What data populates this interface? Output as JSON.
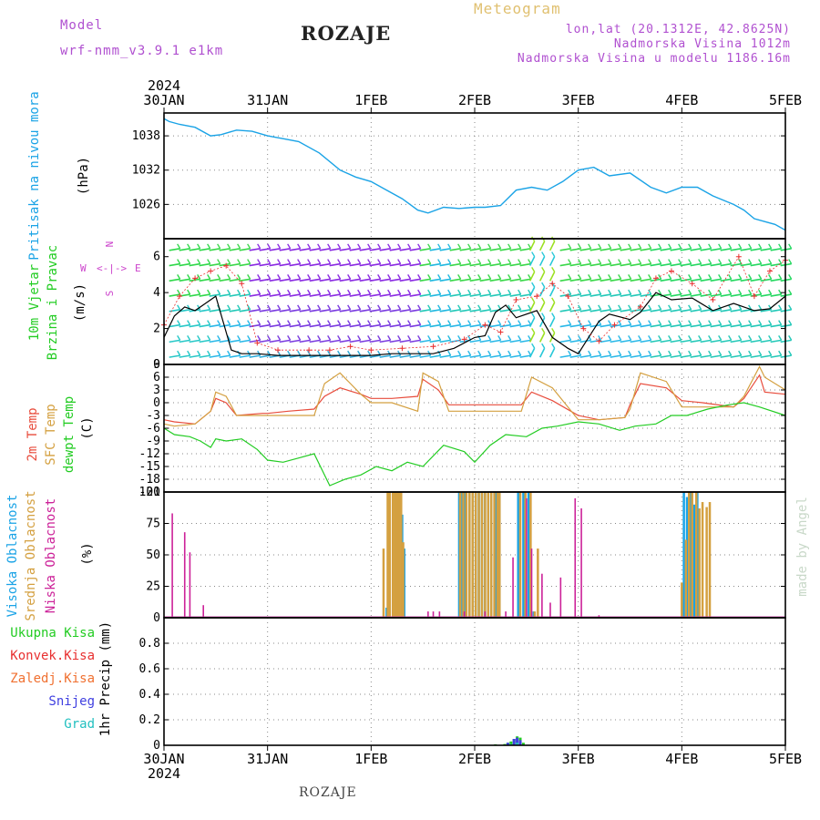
{
  "header": {
    "model_label": "Model",
    "model_name": "wrf-nmm_v3.9.1  e1km",
    "station": "ROZAJE",
    "meteogram_label": "Meteogram",
    "lonlat": "lon,lat (20.1312E, 42.8625N)",
    "elevation": "Nadmorska Visina 1012m",
    "model_elevation": "Nadmorska Visina u modelu 1186.16m",
    "watermark": "made by Angel"
  },
  "footer": {
    "station": "ROZAJE"
  },
  "time_axis": {
    "year": "2024",
    "ticks": [
      "30JAN",
      "31JAN",
      "1FEB",
      "2FEB",
      "3FEB",
      "4FEB",
      "5FEB"
    ]
  },
  "colors": {
    "pressure": "#1aa3e6",
    "wind_label": "#22cc22",
    "wind_dir": "#cc44cc",
    "speed_line": "#000000",
    "gust": "#e83030",
    "temp2m": "#e84c3c",
    "sfc_temp": "#d4a040",
    "dewpt": "#22cc22",
    "cloud_high": "#1aa3e6",
    "cloud_mid": "#d4a040",
    "cloud_low": "#cc2299",
    "precip_total": "#22cc22",
    "precip_conv": "#e83030",
    "precip_frozen": "#f07030",
    "precip_snow": "#4040e0",
    "precip_graupel": "#22c0c0",
    "header_purple": "#b050d0",
    "meteogram": "#e0c070",
    "title": "#222222"
  },
  "panels": {
    "pressure": {
      "label": "Pritisak na nivou mora",
      "unit": "(hPa)",
      "yticks": [
        "1038",
        "1032",
        "1026"
      ]
    },
    "wind": {
      "label_1": "10m Vjetar",
      "label_2": "Brzina i Pravac",
      "unit": "(m/s)",
      "dir_w": "W",
      "dir_e": "E",
      "dir_n": "N",
      "dir_s": "S",
      "yticks": [
        "6",
        "4",
        "2",
        "0"
      ]
    },
    "temp": {
      "label_1": "2m Temp",
      "label_2": "SFC Temp",
      "label_3": "dewpt Temp",
      "unit": "(C)",
      "yticks": [
        "9",
        "6",
        "3",
        "0",
        "-3",
        "-6",
        "-9",
        "-12",
        "-15",
        "-18",
        "-21"
      ]
    },
    "cloud": {
      "label_1": "Visoka Oblacnost",
      "label_2": "Srednja Oblacnost",
      "label_3": "Niska Oblacnost",
      "unit": "(%)",
      "yticks": [
        "100",
        "75",
        "50",
        "25",
        "0"
      ]
    },
    "precip": {
      "label_1": "Ukupna Kisa",
      "label_2": "Konvek.Kisa",
      "label_3": "Zaledj.Kisa",
      "label_4": "Snijeg",
      "label_5": "Grad",
      "unit": "1hr Precip (mm)",
      "yticks": [
        "0.8",
        "0.6",
        "0.4",
        "0.2",
        "0"
      ]
    }
  },
  "chart_data": [
    {
      "type": "line",
      "title": "Pritisak na nivou mora",
      "ylabel": "(hPa)",
      "ylim": [
        1020,
        1042
      ],
      "xlim": [
        0,
        6
      ],
      "grid": true,
      "series": [
        {
          "name": "Pritisak na nivou mora",
          "x": [
            0,
            0.05,
            0.15,
            0.3,
            0.45,
            0.55,
            0.7,
            0.85,
            1.0,
            1.15,
            1.3,
            1.5,
            1.7,
            1.85,
            2.0,
            2.15,
            2.3,
            2.45,
            2.55,
            2.7,
            2.85,
            3.0,
            3.1,
            3.25,
            3.4,
            3.55,
            3.7,
            3.85,
            4.0,
            4.15,
            4.3,
            4.5,
            4.7,
            4.85,
            5.0,
            5.15,
            5.3,
            5.5,
            5.6,
            5.7,
            5.8,
            5.9,
            6.0
          ],
          "y": [
            1041,
            1040.5,
            1040,
            1039.5,
            1038,
            1038.2,
            1039,
            1038.8,
            1038,
            1037.5,
            1037,
            1035,
            1032,
            1030.8,
            1030,
            1028.5,
            1027,
            1025,
            1024.5,
            1025.5,
            1025.3,
            1025.5,
            1025.5,
            1025.8,
            1028.5,
            1029,
            1028.5,
            1030,
            1032,
            1032.5,
            1031,
            1031.5,
            1029,
            1028,
            1029,
            1029,
            1027.5,
            1026,
            1025,
            1023.5,
            1023,
            1022.5,
            1021.5
          ]
        }
      ]
    },
    {
      "type": "line",
      "title": "10m Vjetar Brzina i Pravac",
      "ylabel": "(m/s)",
      "ylim": [
        0,
        7
      ],
      "xlim": [
        0,
        6
      ],
      "grid": true,
      "series": [
        {
          "name": "speed",
          "x": [
            0,
            0.1,
            0.2,
            0.3,
            0.4,
            0.5,
            0.65,
            0.75,
            0.9,
            1.1,
            1.3,
            1.5,
            1.7,
            1.85,
            2.0,
            2.2,
            2.4,
            2.6,
            2.8,
            3.0,
            3.1,
            3.2,
            3.3,
            3.4,
            3.6,
            3.75,
            3.9,
            4.0,
            4.1,
            4.2,
            4.3,
            4.5,
            4.6,
            4.75,
            4.9,
            5.1,
            5.3,
            5.5,
            5.7,
            5.85,
            6.0
          ],
          "y": [
            1.5,
            2.7,
            3.2,
            3.0,
            3.4,
            3.8,
            0.8,
            0.6,
            0.6,
            0.5,
            0.5,
            0.5,
            0.5,
            0.5,
            0.5,
            0.6,
            0.6,
            0.6,
            0.9,
            1.5,
            1.6,
            2.9,
            3.3,
            2.6,
            3.0,
            1.5,
            0.9,
            0.6,
            1.5,
            2.4,
            2.8,
            2.5,
            2.9,
            4.0,
            3.6,
            3.7,
            3.0,
            3.4,
            3.0,
            3.1,
            3.8
          ]
        },
        {
          "name": "gust",
          "x": [
            0,
            0.15,
            0.3,
            0.45,
            0.6,
            0.75,
            0.9,
            1.1,
            1.4,
            1.6,
            1.8,
            2.0,
            2.3,
            2.6,
            2.9,
            3.1,
            3.25,
            3.4,
            3.6,
            3.75,
            3.9,
            4.05,
            4.2,
            4.35,
            4.6,
            4.75,
            4.9,
            5.1,
            5.3,
            5.55,
            5.7,
            5.85,
            6.0
          ],
          "y": [
            2.2,
            3.8,
            4.8,
            5.2,
            5.5,
            4.5,
            1.2,
            0.8,
            0.8,
            0.8,
            1.0,
            0.8,
            0.9,
            1.0,
            1.4,
            2.2,
            1.8,
            3.6,
            3.8,
            4.5,
            3.8,
            2.0,
            1.3,
            2.2,
            3.2,
            4.8,
            5.2,
            4.5,
            3.6,
            6.0,
            3.8,
            5.2,
            5.8
          ]
        }
      ]
    },
    {
      "type": "line",
      "title": "2m Temp / SFC Temp / dewpt Temp",
      "ylabel": "(C)",
      "ylim": [
        -21,
        9
      ],
      "xlim": [
        0,
        6
      ],
      "grid": true,
      "series": [
        {
          "name": "2m Temp",
          "x": [
            0,
            0.1,
            0.3,
            0.45,
            0.5,
            0.6,
            0.7,
            0.95,
            1.0,
            1.2,
            1.45,
            1.55,
            1.7,
            1.9,
            2.0,
            2.2,
            2.45,
            2.5,
            2.65,
            2.75,
            2.9,
            3.0,
            3.2,
            3.45,
            3.55,
            3.75,
            4.0,
            4.2,
            4.45,
            4.5,
            4.6,
            4.85,
            5.0,
            5.2,
            5.5,
            5.6,
            5.75,
            5.8,
            6.0
          ],
          "y": [
            -4,
            -4.5,
            -5,
            -2,
            1,
            0,
            -3,
            -2.5,
            -2.5,
            -2,
            -1.5,
            1.5,
            3.5,
            2,
            1,
            1,
            1.5,
            5.5,
            3,
            -0.5,
            -0.5,
            -0.5,
            -0.5,
            -0.5,
            2.5,
            0.5,
            -3,
            -4,
            -3.5,
            -0.5,
            4.5,
            3.5,
            0.5,
            0,
            -1,
            1,
            6.5,
            2.5,
            2
          ]
        },
        {
          "name": "SFC Temp",
          "x": [
            0,
            0.1,
            0.3,
            0.45,
            0.5,
            0.6,
            0.7,
            0.95,
            1.0,
            1.2,
            1.45,
            1.55,
            1.7,
            1.9,
            2.0,
            2.2,
            2.45,
            2.5,
            2.65,
            2.75,
            2.9,
            3.0,
            3.2,
            3.45,
            3.55,
            3.75,
            4.0,
            4.2,
            4.45,
            4.5,
            4.6,
            4.85,
            5.0,
            5.2,
            5.5,
            5.6,
            5.75,
            5.8,
            6.0
          ],
          "y": [
            -5,
            -5.5,
            -5,
            -2,
            2.5,
            1.5,
            -3,
            -3,
            -3,
            -3,
            -3,
            4.5,
            7,
            2,
            0,
            0,
            -2,
            7,
            5,
            -2,
            -2,
            -2,
            -2,
            -2,
            6,
            3.5,
            -4,
            -4,
            -3.5,
            -1.5,
            7,
            5,
            -1,
            -1,
            -1,
            1.5,
            8.5,
            6,
            3
          ]
        },
        {
          "name": "dewpt Temp",
          "x": [
            0,
            0.1,
            0.25,
            0.35,
            0.45,
            0.5,
            0.6,
            0.75,
            0.9,
            1.0,
            1.15,
            1.3,
            1.45,
            1.6,
            1.75,
            1.9,
            2.05,
            2.2,
            2.35,
            2.5,
            2.7,
            2.9,
            3.0,
            3.15,
            3.3,
            3.5,
            3.65,
            3.8,
            4.0,
            4.2,
            4.4,
            4.55,
            4.75,
            4.9,
            5.05,
            5.25,
            5.45,
            5.6,
            5.75,
            6.0
          ],
          "y": [
            -6,
            -7.5,
            -8,
            -9,
            -10.5,
            -8.5,
            -9,
            -8.5,
            -11,
            -13.5,
            -14,
            -13,
            -12,
            -19.5,
            -18,
            -17,
            -15,
            -16,
            -14,
            -15,
            -10,
            -11.5,
            -14,
            -10,
            -7.5,
            -8,
            -6,
            -5.5,
            -4.5,
            -5,
            -6.5,
            -5.5,
            -5,
            -3,
            -3,
            -1.5,
            -0.5,
            0,
            -1,
            -3
          ]
        }
      ]
    },
    {
      "type": "bar",
      "title": "Visoka / Srednja / Niska Oblacnost",
      "ylabel": "(%)",
      "ylim": [
        0,
        100
      ],
      "xlim": [
        0,
        6
      ],
      "grid": true,
      "series": [
        {
          "name": "Visoka Oblacnost",
          "x": [
            2.15,
            2.26,
            2.3,
            2.32,
            2.85,
            2.88,
            2.91,
            2.95,
            2.98,
            3.01,
            3.04,
            3.07,
            3.1,
            3.13,
            3.16,
            3.2,
            3.23,
            3.24,
            3.42,
            3.47,
            3.52,
            3.57,
            5.02,
            5.05,
            5.08,
            5.12,
            5.15
          ],
          "y": [
            8,
            75,
            82,
            55,
            100,
            100,
            100,
            100,
            100,
            100,
            100,
            100,
            100,
            100,
            100,
            100,
            100,
            100,
            100,
            100,
            100,
            5,
            100,
            96,
            100,
            90,
            100
          ]
        },
        {
          "name": "Srednja Oblacnost",
          "x": [
            2.12,
            2.16,
            2.18,
            2.21,
            2.23,
            2.25,
            2.27,
            2.29,
            2.31,
            2.86,
            2.89,
            2.92,
            2.95,
            2.98,
            3.01,
            3.04,
            3.07,
            3.1,
            3.13,
            3.16,
            3.19,
            3.22,
            3.24,
            3.44,
            3.49,
            3.54,
            3.58,
            3.61,
            5.0,
            5.04,
            5.07,
            5.1,
            5.14,
            5.17,
            5.2,
            5.24,
            5.27
          ],
          "y": [
            55,
            100,
            100,
            100,
            100,
            100,
            100,
            100,
            60,
            100,
            100,
            100,
            100,
            100,
            100,
            100,
            100,
            100,
            100,
            100,
            100,
            100,
            100,
            100,
            100,
            100,
            5,
            55,
            28,
            62,
            100,
            100,
            100,
            87,
            92,
            88,
            92
          ]
        },
        {
          "name": "Niska Oblacnost",
          "x": [
            0.08,
            0.2,
            0.25,
            0.38,
            2.55,
            2.6,
            2.66,
            2.9,
            3.1,
            3.3,
            3.37,
            3.5,
            3.55,
            3.65,
            3.73,
            3.83,
            3.97,
            4.03,
            4.2
          ],
          "y": [
            83,
            68,
            52,
            10,
            5,
            5,
            5,
            5,
            5,
            5,
            48,
            95,
            55,
            35,
            12,
            32,
            95,
            87,
            2
          ]
        }
      ]
    },
    {
      "type": "bar",
      "title": "1hr Precip (mm)",
      "ylabel": "1hr Precip (mm)",
      "ylim": [
        0,
        1.0
      ],
      "xlim": [
        0,
        6
      ],
      "grid": true,
      "series": [
        {
          "name": "Ukupna Kisa",
          "x": [
            3.2,
            3.29,
            3.32,
            3.35,
            3.38,
            3.41,
            3.44,
            3.47
          ],
          "y": [
            0.008,
            0.01,
            0.02,
            0.03,
            0.05,
            0.07,
            0.06,
            0.02
          ]
        },
        {
          "name": "Snijeg",
          "x": [
            3.32,
            3.38,
            3.41,
            3.44
          ],
          "y": [
            0.02,
            0.05,
            0.06,
            0.04
          ]
        },
        {
          "name": "Grad",
          "x": [
            3.35,
            3.41
          ],
          "y": [
            0.01,
            0.02
          ]
        }
      ]
    }
  ]
}
